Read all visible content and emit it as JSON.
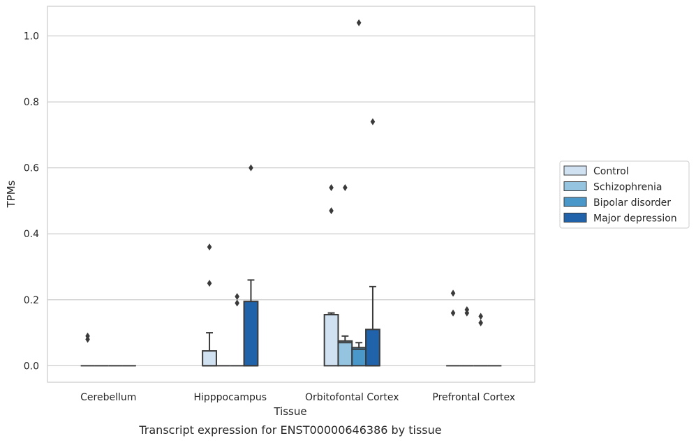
{
  "caption": "Transcript expression for ENST00000646386 by tissue",
  "chart_data": {
    "type": "box",
    "title": "",
    "xlabel": "Tissue",
    "ylabel": "TPMs",
    "ylim": [
      -0.05,
      1.09
    ],
    "yticks": [
      0.0,
      0.2,
      0.4,
      0.6,
      0.8,
      1.0
    ],
    "ytick_labels": [
      "0.0",
      "0.2",
      "0.4",
      "0.6",
      "0.8",
      "1.0"
    ],
    "grid": "horizontal",
    "legend_position": "right",
    "categories": [
      "Cerebellum",
      "Hipppocampus",
      "Orbitofontal Cortex",
      "Prefrontal Cortex"
    ],
    "series": [
      {
        "name": "Control",
        "color": "#d0e1f2",
        "boxes": [
          {
            "q1": 0,
            "median": 0,
            "q3": 0,
            "whisker_low": 0,
            "whisker_high": 0,
            "outliers": [
              0.09,
              0.08
            ]
          },
          {
            "q1": 0,
            "median": 0,
            "q3": 0.045,
            "whisker_low": 0,
            "whisker_high": 0.1,
            "outliers": [
              0.36,
              0.25
            ]
          },
          {
            "q1": 0,
            "median": 0.155,
            "q3": 0.155,
            "whisker_low": 0,
            "whisker_high": 0.16,
            "outliers": [
              0.54,
              0.47
            ]
          },
          {
            "q1": 0,
            "median": 0,
            "q3": 0,
            "whisker_low": 0,
            "whisker_high": 0,
            "outliers": [
              0.22,
              0.16
            ]
          }
        ]
      },
      {
        "name": "Schizophrenia",
        "color": "#94c4df",
        "boxes": [
          {
            "q1": 0,
            "median": 0,
            "q3": 0,
            "whisker_low": 0,
            "whisker_high": 0,
            "outliers": []
          },
          {
            "q1": 0,
            "median": 0,
            "q3": 0,
            "whisker_low": 0,
            "whisker_high": 0,
            "outliers": []
          },
          {
            "q1": 0,
            "median": 0.07,
            "q3": 0.075,
            "whisker_low": 0,
            "whisker_high": 0.09,
            "outliers": [
              0.54
            ]
          },
          {
            "q1": 0,
            "median": 0,
            "q3": 0,
            "whisker_low": 0,
            "whisker_high": 0,
            "outliers": [
              0.17,
              0.16
            ]
          }
        ]
      },
      {
        "name": "Bipolar disorder",
        "color": "#4a98c9",
        "boxes": [
          {
            "q1": 0,
            "median": 0,
            "q3": 0,
            "whisker_low": 0,
            "whisker_high": 0,
            "outliers": []
          },
          {
            "q1": 0,
            "median": 0,
            "q3": 0,
            "whisker_low": 0,
            "whisker_high": 0,
            "outliers": [
              0.21,
              0.19
            ]
          },
          {
            "q1": 0,
            "median": 0.05,
            "q3": 0.055,
            "whisker_low": 0,
            "whisker_high": 0.07,
            "outliers": [
              1.04
            ]
          },
          {
            "q1": 0,
            "median": 0,
            "q3": 0,
            "whisker_low": 0,
            "whisker_high": 0,
            "outliers": [
              0.15,
              0.13
            ]
          }
        ]
      },
      {
        "name": "Major depression",
        "color": "#2163aa",
        "boxes": [
          {
            "q1": 0,
            "median": 0,
            "q3": 0,
            "whisker_low": 0,
            "whisker_high": 0,
            "outliers": []
          },
          {
            "q1": 0,
            "median": 0,
            "q3": 0.195,
            "whisker_low": 0,
            "whisker_high": 0.26,
            "outliers": [
              0.6
            ]
          },
          {
            "q1": 0,
            "median": 0,
            "q3": 0.11,
            "whisker_low": 0,
            "whisker_high": 0.24,
            "outliers": [
              0.74
            ]
          },
          {
            "q1": 0,
            "median": 0,
            "q3": 0,
            "whisker_low": 0,
            "whisker_high": 0,
            "outliers": []
          }
        ]
      }
    ]
  }
}
